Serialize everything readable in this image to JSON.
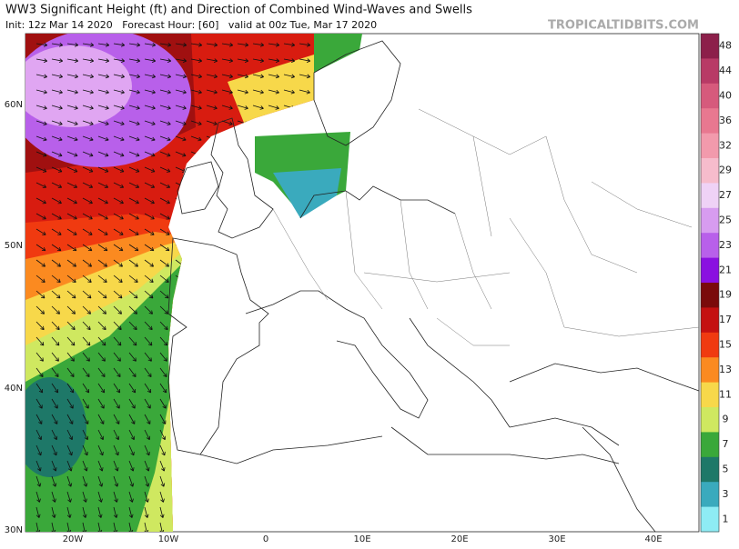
{
  "header": {
    "title": "WW3 Significant Height (ft) and Direction of Combined Wind-Waves and Swells",
    "subtitle": "Init: 12z Mar 14 2020   Forecast Hour: [60]   valid at 00z Tue, Mar 17 2020",
    "watermark": "TROPICALTIDBITS.COM"
  },
  "colorbar": {
    "levels": [
      {
        "label": "48",
        "color": "#8c1f4a"
      },
      {
        "label": "44",
        "color": "#b83a66"
      },
      {
        "label": "40",
        "color": "#d65a7c"
      },
      {
        "label": "36",
        "color": "#e87890"
      },
      {
        "label": "32",
        "color": "#f29aac"
      },
      {
        "label": "29",
        "color": "#f6bccc"
      },
      {
        "label": "27",
        "color": "#efd2f6"
      },
      {
        "label": "25",
        "color": "#d79cf0"
      },
      {
        "label": "23",
        "color": "#b860ea"
      },
      {
        "label": "21",
        "color": "#8a10e0"
      },
      {
        "label": "19",
        "color": "#7a0a0a"
      },
      {
        "label": "17",
        "color": "#c41010"
      },
      {
        "label": "15",
        "color": "#f03a10"
      },
      {
        "label": "13",
        "color": "#fb8a20"
      },
      {
        "label": "11",
        "color": "#f7d84a"
      },
      {
        "label": "9",
        "color": "#cfe860"
      },
      {
        "label": "7",
        "color": "#3aa83a"
      },
      {
        "label": "5",
        "color": "#1e7868"
      },
      {
        "label": "3",
        "color": "#3aaabd"
      },
      {
        "label": "1",
        "color": "#8eecf4"
      }
    ]
  },
  "axes": {
    "lat": [
      "60N",
      "50N",
      "40N",
      "30N"
    ],
    "lon": [
      "20W",
      "10W",
      "0",
      "10E",
      "20E",
      "30E",
      "40E"
    ]
  }
}
